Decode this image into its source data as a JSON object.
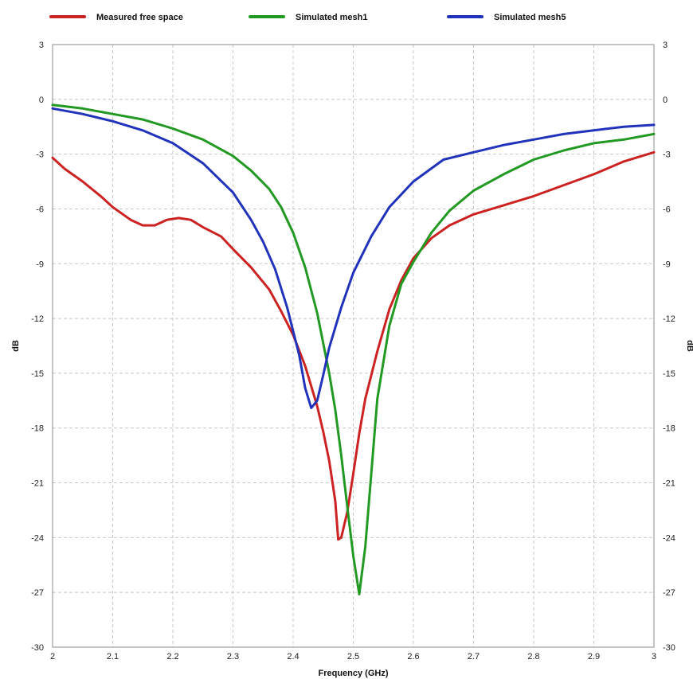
{
  "chart_data": {
    "type": "line",
    "title": "",
    "xlabel": "Frequency (GHz)",
    "ylabel": "dB",
    "ylabel_right": "dB",
    "xlim": [
      2,
      3
    ],
    "ylim": [
      -30,
      3
    ],
    "x_ticks": [
      "2",
      "2.1",
      "2.2",
      "2.3",
      "2.4",
      "2.5",
      "2.6",
      "2.7",
      "2.8",
      "2.9",
      "3"
    ],
    "y_ticks": [
      "3",
      "0",
      "-3",
      "-6",
      "-9",
      "-12",
      "-15",
      "-18",
      "-21",
      "-24",
      "-27",
      "-30"
    ],
    "grid": true,
    "legend_position": "top",
    "series": [
      {
        "name": "Measured free space",
        "color": "#cc2222",
        "x": [
          2.0,
          2.02,
          2.05,
          2.08,
          2.1,
          2.13,
          2.15,
          2.17,
          2.19,
          2.21,
          2.23,
          2.25,
          2.28,
          2.3,
          2.33,
          2.36,
          2.38,
          2.4,
          2.42,
          2.44,
          2.45,
          2.46,
          2.47,
          2.475,
          2.48,
          2.49,
          2.5,
          2.51,
          2.52,
          2.54,
          2.56,
          2.58,
          2.6,
          2.63,
          2.66,
          2.7,
          2.75,
          2.8,
          2.85,
          2.9,
          2.95,
          3.0
        ],
        "values": [
          -3.2,
          -3.8,
          -4.5,
          -5.3,
          -5.9,
          -6.6,
          -6.9,
          -6.9,
          -6.6,
          -6.5,
          -6.6,
          -7.0,
          -7.5,
          -8.2,
          -9.2,
          -10.4,
          -11.6,
          -12.9,
          -14.6,
          -16.8,
          -18.2,
          -19.8,
          -22.0,
          -24.1,
          -24.0,
          -22.6,
          -20.5,
          -18.3,
          -16.4,
          -13.8,
          -11.5,
          -9.9,
          -8.7,
          -7.6,
          -6.9,
          -6.3,
          -5.8,
          -5.3,
          -4.7,
          -4.1,
          -3.4,
          -2.9
        ]
      },
      {
        "name": "Simulated mesh1",
        "color": "#229922",
        "x": [
          2.0,
          2.05,
          2.1,
          2.15,
          2.2,
          2.25,
          2.3,
          2.33,
          2.36,
          2.38,
          2.4,
          2.42,
          2.44,
          2.46,
          2.47,
          2.48,
          2.49,
          2.5,
          2.51,
          2.52,
          2.53,
          2.54,
          2.56,
          2.58,
          2.6,
          2.63,
          2.66,
          2.7,
          2.75,
          2.8,
          2.85,
          2.9,
          2.95,
          3.0
        ],
        "values": [
          -0.3,
          -0.5,
          -0.8,
          -1.1,
          -1.6,
          -2.2,
          -3.1,
          -3.9,
          -4.9,
          -5.9,
          -7.3,
          -9.2,
          -11.7,
          -15.0,
          -17.0,
          -19.5,
          -22.3,
          -25.0,
          -27.1,
          -24.5,
          -20.5,
          -16.4,
          -12.4,
          -10.1,
          -8.9,
          -7.3,
          -6.1,
          -5.0,
          -4.1,
          -3.3,
          -2.8,
          -2.4,
          -2.2,
          -1.9
        ]
      },
      {
        "name": "Simulated mesh5",
        "color": "#2233bb",
        "x": [
          2.0,
          2.05,
          2.1,
          2.15,
          2.2,
          2.25,
          2.3,
          2.33,
          2.35,
          2.37,
          2.39,
          2.41,
          2.42,
          2.43,
          2.44,
          2.45,
          2.46,
          2.48,
          2.5,
          2.53,
          2.56,
          2.6,
          2.65,
          2.7,
          2.75,
          2.8,
          2.85,
          2.9,
          2.95,
          3.0
        ],
        "values": [
          -0.5,
          -0.8,
          -1.2,
          -1.7,
          -2.4,
          -3.5,
          -5.1,
          -6.6,
          -7.8,
          -9.3,
          -11.4,
          -14.0,
          -15.8,
          -16.9,
          -16.5,
          -15.1,
          -13.6,
          -11.4,
          -9.5,
          -7.5,
          -5.9,
          -4.5,
          -3.3,
          -2.9,
          -2.5,
          -2.2,
          -1.9,
          -1.7,
          -1.5,
          -1.4
        ]
      }
    ]
  }
}
